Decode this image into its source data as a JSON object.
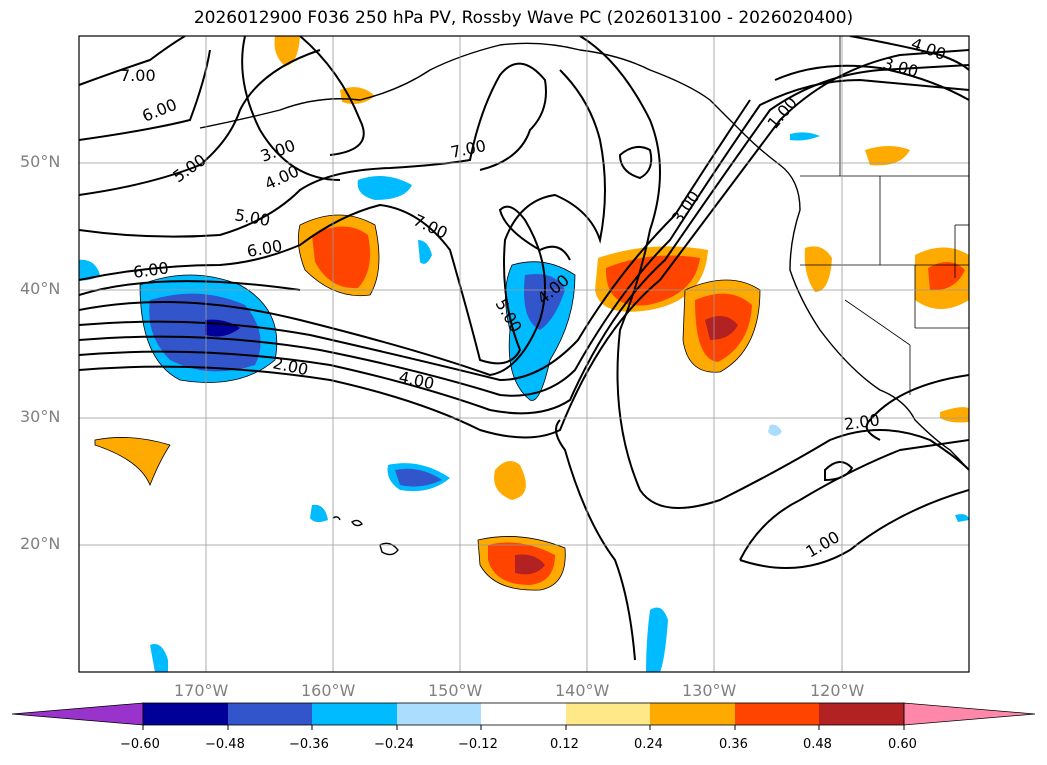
{
  "title": "2026012900 F036 250 hPa PV, Rossby Wave PC (2026013100 - 2026020400)",
  "lat_labels": [
    "50°N",
    "40°N",
    "30°N",
    "20°N"
  ],
  "lon_labels": [
    "170°W",
    "160°W",
    "150°W",
    "140°W",
    "130°W",
    "120°W"
  ],
  "colorbar": {
    "ticks": [
      "−0.60",
      "−0.48",
      "−0.36",
      "−0.24",
      "−0.12",
      "0.12",
      "0.24",
      "0.36",
      "0.48",
      "0.60"
    ],
    "colors": [
      "#9933cc",
      "#000099",
      "#3355cc",
      "#00bbff",
      "#aaddff",
      "#ffffff",
      "#ffe888",
      "#ffaa00",
      "#ff4400",
      "#b22222",
      "#ff88aa"
    ]
  },
  "contour_labels": [
    "7.00",
    "6.00",
    "5.00",
    "3.00",
    "4.00",
    "5.00",
    "6.00",
    "6.00",
    "7.00",
    "7.00",
    "5.00",
    "4.00",
    "2.00",
    "4.00",
    "3.00",
    "1.00",
    "3.00",
    "4.00",
    "2.00",
    "1.00"
  ],
  "map_extent": {
    "lon_min": -180,
    "lon_max": -110,
    "lat_min": 10,
    "lat_max": 60
  }
}
